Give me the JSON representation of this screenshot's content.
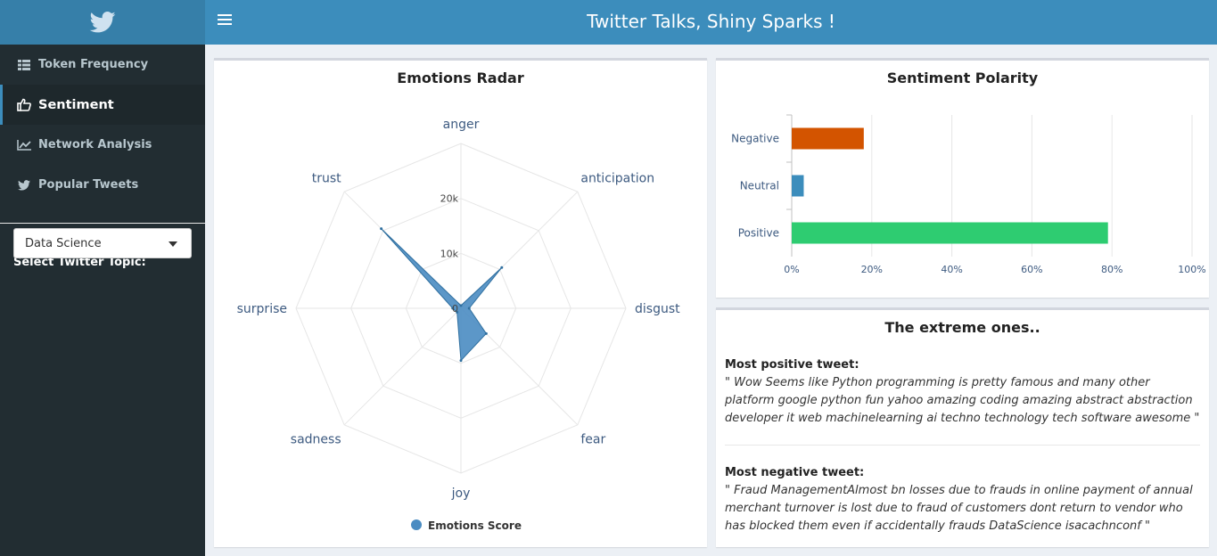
{
  "header": {
    "title": "Twitter Talks, Shiny Sparks !",
    "logo_icon": "twitter-bird-icon"
  },
  "sidebar": {
    "items": [
      {
        "label": "Token Frequency",
        "icon": "table-icon",
        "active": false
      },
      {
        "label": "Sentiment",
        "icon": "thumbs-up-icon",
        "active": true
      },
      {
        "label": "Network Analysis",
        "icon": "line-chart-icon",
        "active": false
      },
      {
        "label": "Popular Tweets",
        "icon": "twitter-icon",
        "active": false
      }
    ],
    "select_label": "Select Twitter Topic:",
    "select_value": "Data Science"
  },
  "radar_panel": {
    "title": "Emotions Radar",
    "legend_label": "Emotions Score"
  },
  "polarity_panel": {
    "title": "Sentiment Polarity"
  },
  "extreme_panel": {
    "title": "The extreme ones..",
    "positive_heading": "Most positive tweet:",
    "positive_text": "\" Wow Seems like Python programming is pretty famous and many other platform google python fun yahoo amazing coding amazing abstract abstraction developer it  web machinelearning ai techno technology tech software awesome \"",
    "negative_heading": "Most negative tweet:",
    "negative_text": "\" Fraud ManagementAlmost bn losses due to frauds in online payment of annual merchant turnover is lost due to fraud of customers dont return to vendor who has blocked them even if accidentally frauds DataScience isacachnconf \""
  },
  "chart_data": [
    {
      "type": "radar",
      "title": "Emotions Radar",
      "categories": [
        "anger",
        "anticipation",
        "disgust",
        "fear",
        "joy",
        "sadness",
        "surprise",
        "trust"
      ],
      "series": [
        {
          "name": "Emotions Score",
          "values": [
            500,
            10500,
            1500,
            6500,
            9500,
            1000,
            1500,
            20500
          ],
          "color": "#4a8cc2"
        }
      ],
      "rlim": [
        0,
        30000
      ],
      "tick_labels": [
        "0",
        "10k",
        "20k"
      ],
      "legend": "bottom"
    },
    {
      "type": "bar",
      "orientation": "horizontal",
      "title": "Sentiment Polarity",
      "categories": [
        "Negative",
        "Neutral",
        "Positive"
      ],
      "values": [
        18,
        3,
        79
      ],
      "colors": [
        "#d35400",
        "#3c8dbc",
        "#2ecc71"
      ],
      "xlim": [
        0,
        100
      ],
      "tick_labels": [
        "0%",
        "20%",
        "40%",
        "60%",
        "80%",
        "100%"
      ],
      "grid": true
    }
  ]
}
